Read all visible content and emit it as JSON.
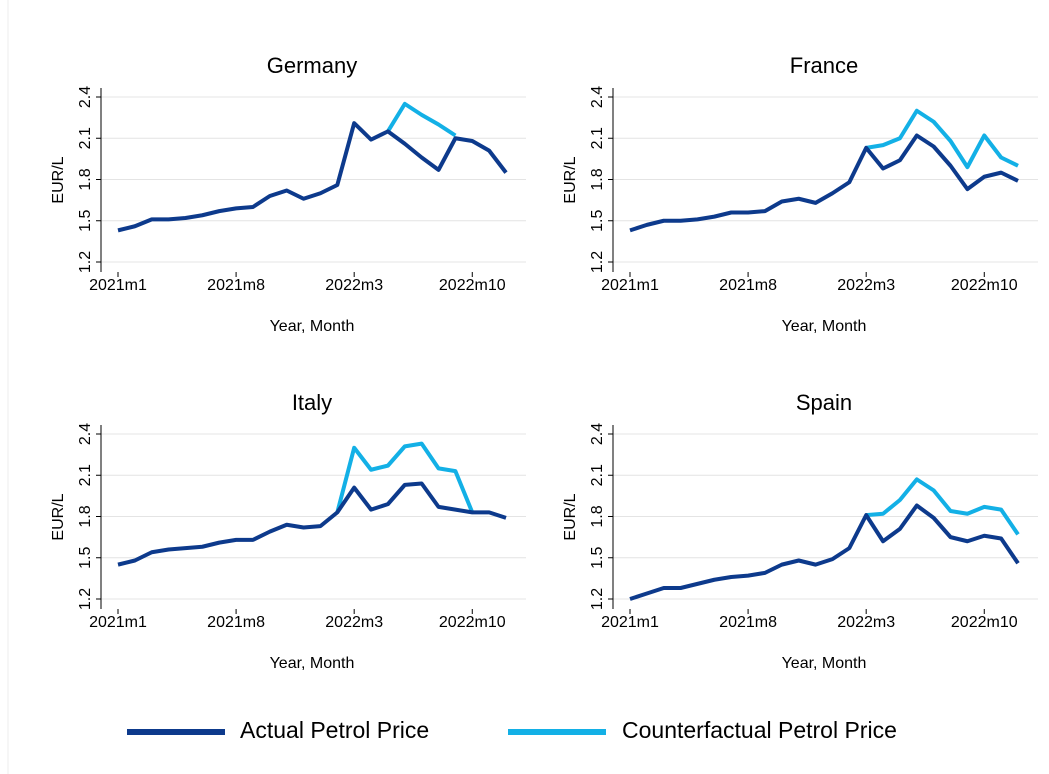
{
  "chart_data": [
    {
      "type": "line",
      "title": "Germany",
      "x_label": "Year, Month",
      "y_label": "EUR/L",
      "categories": [
        "2021m1",
        null,
        null,
        null,
        null,
        null,
        null,
        "2021m8",
        null,
        null,
        null,
        null,
        null,
        null,
        "2022m3",
        null,
        null,
        null,
        null,
        null,
        null,
        "2022m10",
        null,
        null
      ],
      "ylim": [
        1.2,
        2.4
      ],
      "yticks": [
        1.2,
        1.5,
        1.8,
        2.1,
        2.4
      ],
      "grid": true,
      "series": [
        {
          "name": "Actual Petrol Price",
          "color": "#0d3a8c",
          "values": [
            1.43,
            1.46,
            1.51,
            1.51,
            1.52,
            1.54,
            1.57,
            1.59,
            1.6,
            1.68,
            1.72,
            1.66,
            1.7,
            1.76,
            2.21,
            2.09,
            2.15,
            2.06,
            1.96,
            1.87,
            2.1,
            2.08,
            2.01,
            1.85
          ]
        },
        {
          "name": "Counterfactual Petrol Price",
          "color": "#13b0e6",
          "values": [
            null,
            null,
            null,
            null,
            null,
            null,
            null,
            null,
            null,
            null,
            null,
            null,
            null,
            null,
            null,
            null,
            2.15,
            2.35,
            2.27,
            2.2,
            2.12,
            null,
            null,
            null
          ]
        }
      ]
    },
    {
      "type": "line",
      "title": "France",
      "x_label": "Year, Month",
      "y_label": "EUR/L",
      "categories": [
        "2021m1",
        null,
        null,
        null,
        null,
        null,
        null,
        "2021m8",
        null,
        null,
        null,
        null,
        null,
        null,
        "2022m3",
        null,
        null,
        null,
        null,
        null,
        null,
        "2022m10",
        null,
        null
      ],
      "ylim": [
        1.2,
        2.4
      ],
      "yticks": [
        1.2,
        1.5,
        1.8,
        2.1,
        2.4
      ],
      "grid": true,
      "series": [
        {
          "name": "Actual Petrol Price",
          "color": "#0d3a8c",
          "values": [
            1.43,
            1.47,
            1.5,
            1.5,
            1.51,
            1.53,
            1.56,
            1.56,
            1.57,
            1.64,
            1.66,
            1.63,
            1.7,
            1.78,
            2.03,
            1.88,
            1.94,
            2.12,
            2.04,
            1.9,
            1.73,
            1.82,
            1.85,
            1.79
          ]
        },
        {
          "name": "Counterfactual Petrol Price",
          "color": "#13b0e6",
          "values": [
            null,
            null,
            null,
            null,
            null,
            null,
            null,
            null,
            null,
            null,
            null,
            null,
            null,
            null,
            2.03,
            2.05,
            2.1,
            2.3,
            2.22,
            2.08,
            1.89,
            2.12,
            1.96,
            1.9
          ]
        }
      ]
    },
    {
      "type": "line",
      "title": "Italy",
      "x_label": "Year, Month",
      "y_label": "EUR/L",
      "categories": [
        "2021m1",
        null,
        null,
        null,
        null,
        null,
        null,
        "2021m8",
        null,
        null,
        null,
        null,
        null,
        null,
        "2022m3",
        null,
        null,
        null,
        null,
        null,
        null,
        "2022m10",
        null,
        null
      ],
      "ylim": [
        1.2,
        2.4
      ],
      "yticks": [
        1.2,
        1.5,
        1.8,
        2.1,
        2.4
      ],
      "grid": true,
      "series": [
        {
          "name": "Actual Petrol Price",
          "color": "#0d3a8c",
          "values": [
            1.45,
            1.48,
            1.54,
            1.56,
            1.57,
            1.58,
            1.61,
            1.63,
            1.63,
            1.69,
            1.74,
            1.72,
            1.73,
            1.83,
            2.01,
            1.85,
            1.89,
            2.03,
            2.04,
            1.87,
            1.85,
            1.83,
            1.83,
            1.79
          ]
        },
        {
          "name": "Counterfactual Petrol Price",
          "color": "#13b0e6",
          "values": [
            null,
            null,
            null,
            null,
            null,
            null,
            null,
            null,
            null,
            null,
            null,
            null,
            null,
            1.83,
            2.3,
            2.14,
            2.17,
            2.31,
            2.33,
            2.15,
            2.13,
            1.83,
            null,
            null
          ]
        }
      ]
    },
    {
      "type": "line",
      "title": "Spain",
      "x_label": "Year, Month",
      "y_label": "EUR/L",
      "categories": [
        "2021m1",
        null,
        null,
        null,
        null,
        null,
        null,
        "2021m8",
        null,
        null,
        null,
        null,
        null,
        null,
        "2022m3",
        null,
        null,
        null,
        null,
        null,
        null,
        "2022m10",
        null,
        null
      ],
      "ylim": [
        1.2,
        2.4
      ],
      "yticks": [
        1.2,
        1.5,
        1.8,
        2.1,
        2.4
      ],
      "grid": true,
      "series": [
        {
          "name": "Actual Petrol Price",
          "color": "#0d3a8c",
          "values": [
            1.2,
            1.24,
            1.28,
            1.28,
            1.31,
            1.34,
            1.36,
            1.37,
            1.39,
            1.45,
            1.48,
            1.45,
            1.49,
            1.57,
            1.81,
            1.62,
            1.71,
            1.88,
            1.79,
            1.65,
            1.62,
            1.66,
            1.64,
            1.46
          ]
        },
        {
          "name": "Counterfactual Petrol Price",
          "color": "#13b0e6",
          "values": [
            null,
            null,
            null,
            null,
            null,
            null,
            null,
            null,
            null,
            null,
            null,
            null,
            null,
            null,
            1.81,
            1.82,
            1.92,
            2.07,
            1.99,
            1.84,
            1.82,
            1.87,
            1.85,
            1.67
          ]
        }
      ]
    }
  ]
}
